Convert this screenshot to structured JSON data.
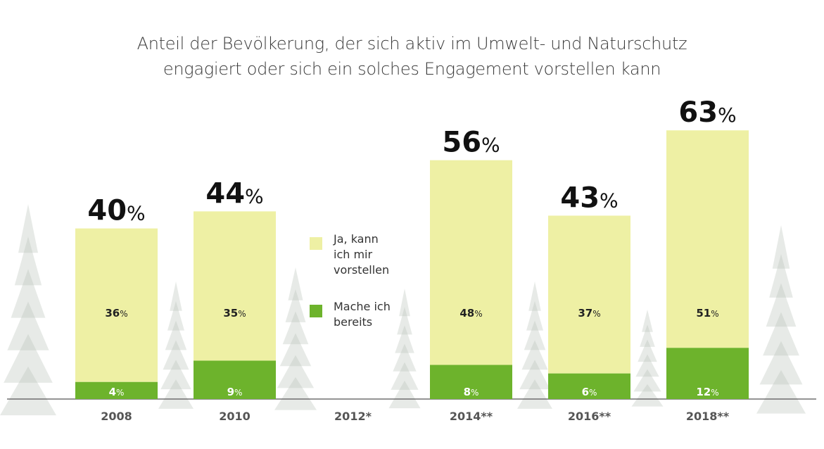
{
  "chart_data": {
    "type": "stacked-bar",
    "title": "Anteil der Bevölkerung, der sich aktiv im Umwelt- und Naturschutz engagiert oder sich ein solches Engagement vorstellen kann",
    "title_lines": [
      "Anteil der Bevölkerung, der sich aktiv im Umwelt- und Naturschutz",
      "engagiert oder sich ein solches Engagement vorstellen kann"
    ],
    "categories": [
      "2008",
      "2010",
      "2012*",
      "2014**",
      "2016**",
      "2018**"
    ],
    "series": [
      {
        "name": "Mache ich bereits",
        "values": [
          4,
          9,
          null,
          8,
          6,
          12
        ],
        "color": "#6db32c"
      },
      {
        "name": "Ja, kann ich mir vorstellen",
        "values": [
          36,
          35,
          null,
          48,
          37,
          51
        ],
        "color": "#eef0a4"
      }
    ],
    "totals": [
      40,
      44,
      null,
      56,
      43,
      63
    ],
    "unit": "%",
    "ylim": [
      0,
      63
    ],
    "grid": false,
    "legend": {
      "placement": "center",
      "items": [
        {
          "label_lines": [
            "Ja, kann",
            "ich mir",
            "vorstellen"
          ],
          "color": "#eef0a4"
        },
        {
          "label_lines": [
            "Mache ich",
            "bereits"
          ],
          "color": "#6db32c"
        }
      ]
    }
  }
}
